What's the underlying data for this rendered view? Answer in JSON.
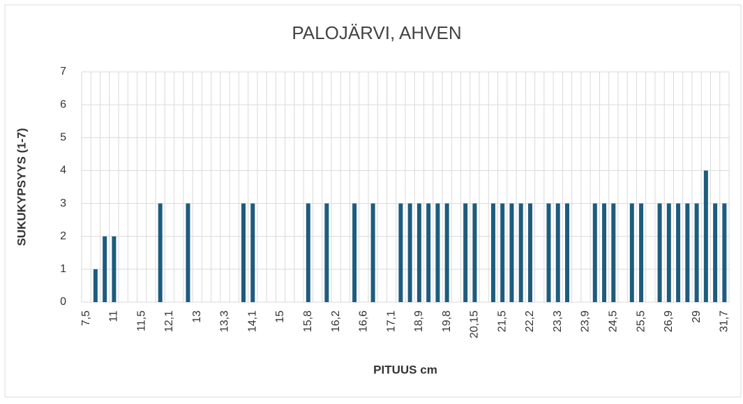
{
  "chart_data": {
    "type": "bar",
    "title": "PALOJÄRVI, AHVEN",
    "x_label": "PITUUS cm",
    "y_label": "SUKUKYPSYYS (1-7)",
    "categories": [
      "7,5",
      null,
      null,
      "11",
      null,
      null,
      "11,5",
      null,
      null,
      "12,1",
      null,
      null,
      "13",
      null,
      null,
      "13,3",
      null,
      null,
      "14,1",
      null,
      null,
      "15",
      null,
      null,
      "15,8",
      null,
      null,
      "16,2",
      null,
      null,
      "16,6",
      null,
      null,
      "17,1",
      null,
      null,
      "18,9",
      null,
      null,
      "19,8",
      null,
      null,
      "20,15",
      null,
      null,
      "21,5",
      null,
      null,
      "22,2",
      null,
      null,
      "23,3",
      null,
      null,
      "23,9",
      null,
      null,
      "24,5",
      null,
      null,
      "25,5",
      null,
      null,
      "26,9",
      null,
      null,
      "29",
      null,
      null,
      "31,7"
    ],
    "values": [
      null,
      1,
      2,
      2,
      null,
      null,
      null,
      null,
      3,
      null,
      null,
      3,
      null,
      null,
      null,
      null,
      null,
      3,
      3,
      null,
      null,
      null,
      null,
      null,
      3,
      null,
      3,
      null,
      null,
      3,
      null,
      3,
      null,
      null,
      3,
      3,
      3,
      3,
      3,
      3,
      null,
      3,
      3,
      null,
      3,
      3,
      3,
      3,
      3,
      null,
      3,
      3,
      3,
      null,
      null,
      3,
      3,
      3,
      null,
      3,
      3,
      null,
      3,
      3,
      3,
      3,
      3,
      4,
      3,
      3
    ],
    "color": "#1d5c7e",
    "ylim": [
      0,
      7
    ],
    "yticks": [
      0,
      1,
      2,
      3,
      4,
      5,
      6,
      7
    ],
    "grid": true
  }
}
